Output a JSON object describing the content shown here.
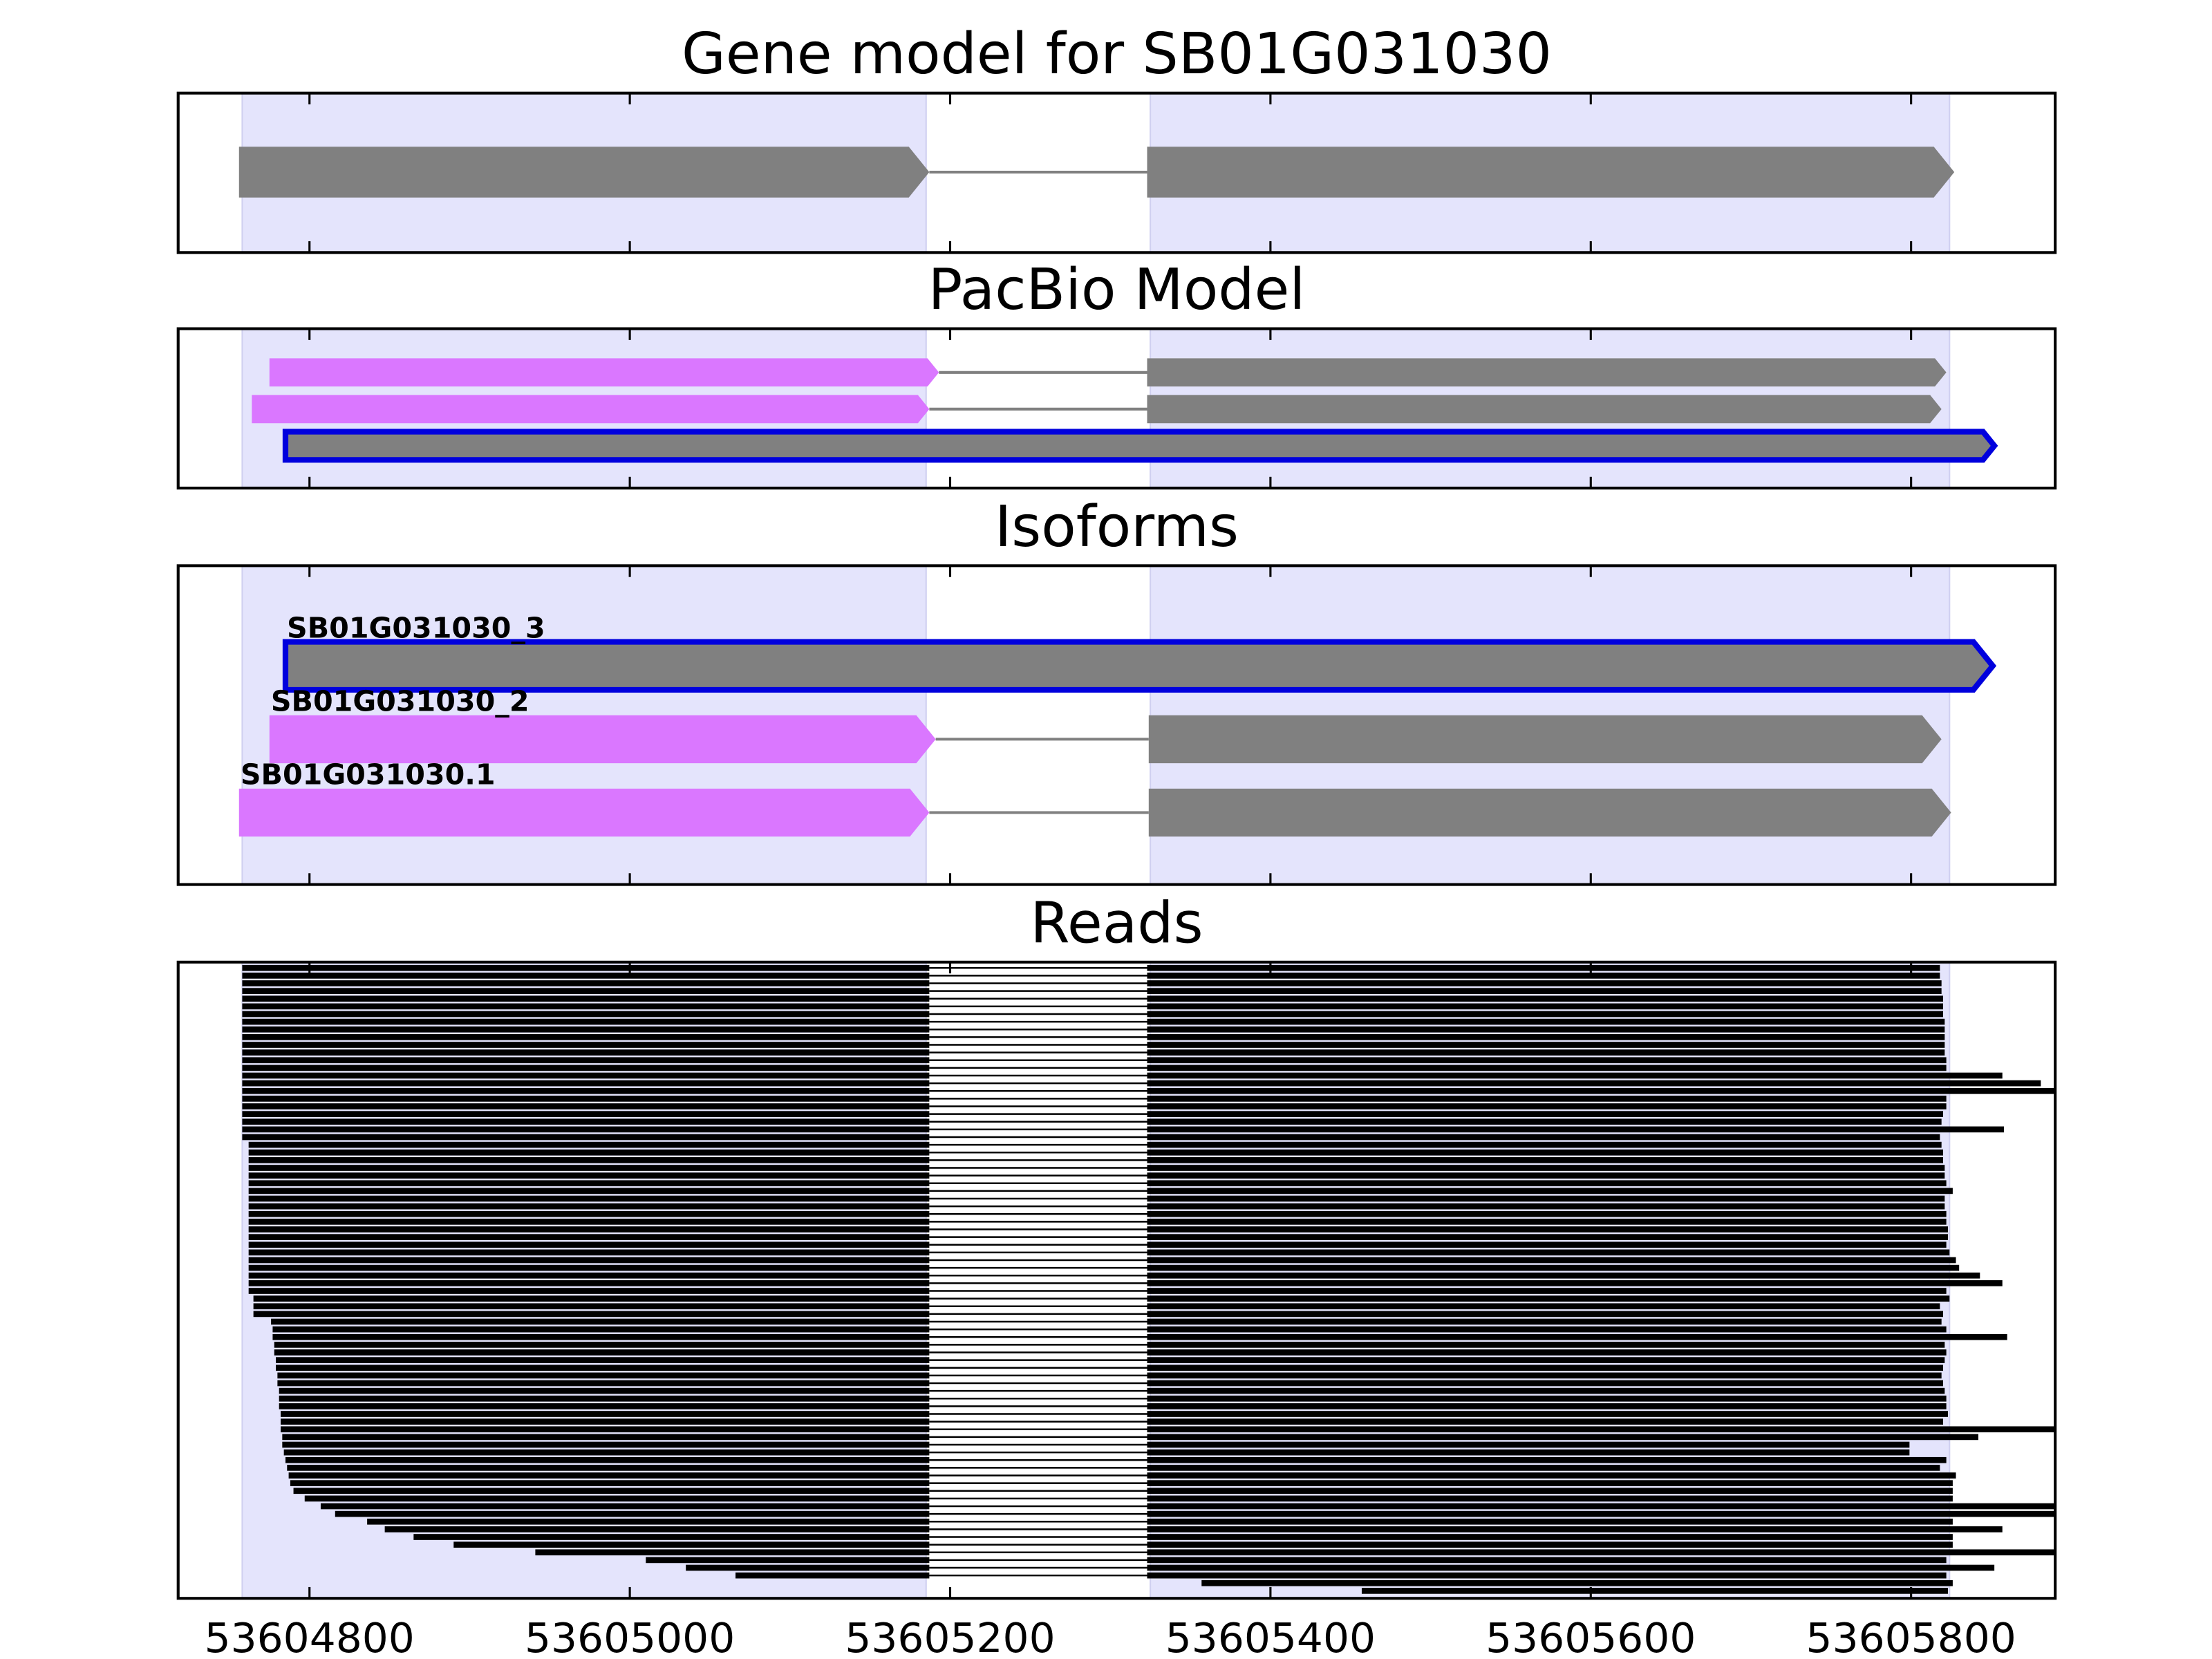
{
  "chart_data": [
    {
      "type": "gene-track",
      "title": "Gene model for SB01G031030",
      "regions": [
        [
          53604758,
          53605185
        ],
        [
          53605325,
          53605824
        ]
      ],
      "region_color": "#e4e4fc",
      "intron_color": "#808080",
      "transcripts": [
        {
          "exons": [
            [
              53604756,
              53605187
            ],
            [
              53605323,
              53605827
            ]
          ],
          "colors": [
            "#808080",
            "#808080"
          ]
        }
      ]
    },
    {
      "type": "gene-track",
      "title": "PacBio Model",
      "regions": [
        [
          53604758,
          53605185
        ],
        [
          53605325,
          53605824
        ]
      ],
      "region_color": "#e4e4fc",
      "intron_color": "#808080",
      "transcripts": [
        {
          "exons": [
            [
              53604775,
              53605193
            ],
            [
              53605323,
              53605822
            ]
          ],
          "colors": [
            "#da77ff",
            "#808080"
          ]
        },
        {
          "exons": [
            [
              53604764,
              53605187
            ],
            [
              53605323,
              53605819
            ]
          ],
          "colors": [
            "#da77ff",
            "#808080"
          ]
        },
        {
          "exons": [
            [
              53604785,
              53605852
            ]
          ],
          "colors": [
            "#808080"
          ],
          "outline": "#0000dd"
        }
      ]
    },
    {
      "type": "gene-track",
      "title": "Isoforms",
      "regions": [
        [
          53604758,
          53605185
        ],
        [
          53605325,
          53605824
        ]
      ],
      "region_color": "#e4e4fc",
      "intron_color": "#808080",
      "transcripts": [
        {
          "name": "SB01G031030_3",
          "exons": [
            [
              53604785,
              53605851
            ]
          ],
          "colors": [
            "#808080"
          ],
          "outline": "#0000dd"
        },
        {
          "name": "SB01G031030_2",
          "exons": [
            [
              53604775,
              53605191
            ],
            [
              53605324,
              53605819
            ]
          ],
          "colors": [
            "#da77ff",
            "#808080"
          ]
        },
        {
          "name": "SB01G031030.1",
          "exons": [
            [
              53604756,
              53605187
            ],
            [
              53605324,
              53605825
            ]
          ],
          "colors": [
            "#da77ff",
            "#808080"
          ]
        }
      ]
    },
    {
      "type": "reads",
      "title": "Reads",
      "regions": [
        [
          53604758,
          53605185
        ],
        [
          53605325,
          53605824
        ]
      ],
      "region_color": "#e4e4fc",
      "color": "#000000",
      "junction": [
        53605187,
        53605323
      ],
      "read_starts": [
        53604758,
        53604758,
        53604758,
        53604758,
        53604758,
        53604758,
        53604758,
        53604758,
        53604758,
        53604758,
        53604758,
        53604758,
        53604758,
        53604758,
        53604758,
        53604758,
        53604758,
        53604758,
        53604758,
        53604758,
        53604758,
        53604758,
        53604758,
        53604762,
        53604762,
        53604762,
        53604762,
        53604762,
        53604762,
        53604762,
        53604762,
        53604762,
        53604762,
        53604762,
        53604762,
        53604762,
        53604762,
        53604762,
        53604762,
        53604762,
        53604762,
        53604762,
        53604762,
        53604765,
        53604765,
        53604765,
        53604776,
        53604777,
        53604777,
        53604778,
        53604778,
        53604779,
        53604779,
        53604780,
        53604780,
        53604781,
        53604781,
        53604781,
        53604782,
        53604782,
        53604782,
        53604783,
        53604783,
        53604784,
        53604785,
        53604786,
        53604787,
        53604788,
        53604790,
        53604797,
        53604807,
        53604816,
        53604836,
        53604847,
        53604865,
        53604890,
        53604941,
        53605010,
        53605035,
        53605066,
        53605357,
        53605457
      ],
      "read_ends": [
        53605818,
        53605818,
        53605819,
        53605819,
        53605820,
        53605820,
        53605820,
        53605821,
        53605821,
        53605821,
        53605821,
        53605821,
        53605822,
        53605822,
        53605857,
        53605881,
        53605890,
        53605822,
        53605822,
        53605820,
        53605819,
        53605858,
        53605818,
        53605819,
        53605820,
        53605820,
        53605821,
        53605821,
        53605822,
        53605826,
        53605821,
        53605821,
        53605822,
        53605822,
        53605823,
        53605823,
        53605822,
        53605824,
        53605828,
        53605830,
        53605843,
        53605857,
        53605822,
        53605824,
        53605818,
        53605820,
        53605819,
        53605822,
        53605860,
        53605821,
        53605822,
        53605821,
        53605820,
        53605819,
        53605820,
        53605821,
        53605822,
        53605822,
        53605823,
        53605820,
        53605890,
        53605842,
        53605799,
        53605799,
        53605822,
        53605818,
        53605828,
        53605826,
        53605826,
        53605826,
        53605890,
        53605890,
        53605826,
        53605857,
        53605826,
        53605826,
        53605890,
        53605822,
        53605852,
        53605822,
        53605826,
        53605823
      ],
      "xlim": [
        53604718,
        53605890
      ],
      "xticks": [
        53604800,
        53605000,
        53605200,
        53605400,
        53605600,
        53605800
      ]
    }
  ]
}
